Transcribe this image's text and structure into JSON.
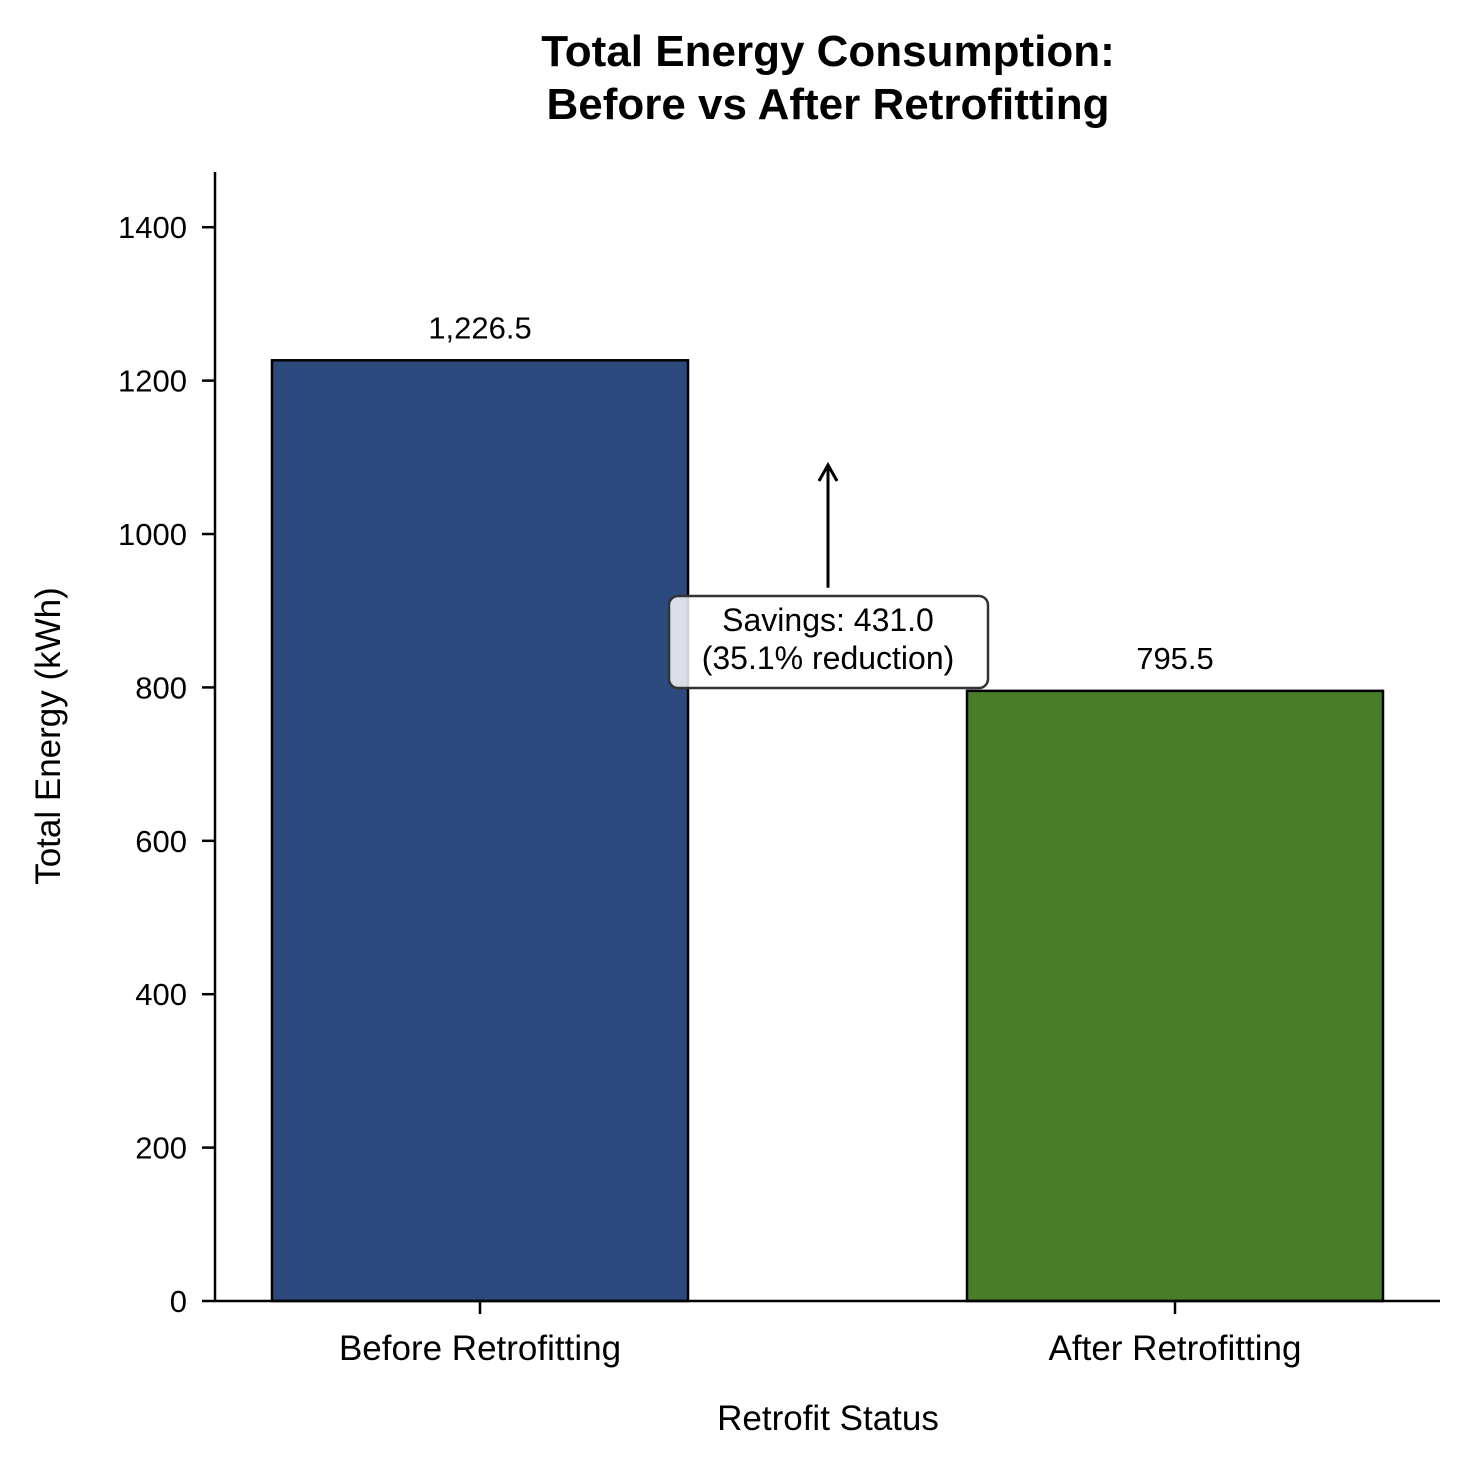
{
  "chart_data": {
    "type": "bar",
    "title_lines": [
      "Total Energy Consumption:",
      "Before vs After Retrofitting"
    ],
    "xlabel": "Retrofit Status",
    "ylabel": "Total Energy (kWh)",
    "categories": [
      "Before Retrofitting",
      "After Retrofitting"
    ],
    "values": [
      1226.5,
      795.5
    ],
    "value_labels": [
      "1,226.5",
      "795.5"
    ],
    "colors": [
      "#2c4a7e",
      "#4a7d2a"
    ],
    "edge_color": "#000000",
    "ylim": [
      0,
      1472
    ],
    "yticks": [
      0,
      200,
      400,
      600,
      800,
      1000,
      1200,
      1400
    ],
    "grid": false,
    "legend": "none",
    "annotation": {
      "lines": [
        "Savings: 431.0",
        "(35.1% reduction)"
      ],
      "arrow_from_value": 930,
      "arrow_to_value": 1090
    }
  }
}
